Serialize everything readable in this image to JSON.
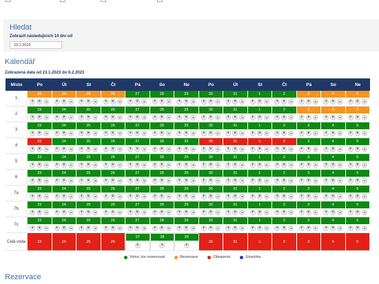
{
  "search": {
    "title": "Hledat",
    "label": "Zobrazit následujících 14 dní od",
    "date_value": "23.1.2023"
  },
  "calendar": {
    "title": "Kalendář",
    "range": "Zobrazená data od 23.1.2023 do 6.2.2023",
    "header_place": "Místo",
    "days": [
      "Po",
      "Út",
      "St",
      "Čt",
      "Pá",
      "So",
      "Ne",
      "Po",
      "Út",
      "St",
      "Čt",
      "Pá",
      "So",
      "Ne"
    ],
    "dates": [
      "23",
      "24",
      "25",
      "26",
      "27",
      "28",
      "29",
      "30",
      "31",
      "1",
      "2",
      "3",
      "4",
      "5"
    ],
    "rows": [
      {
        "place": "1",
        "status": [
          "res",
          "res",
          "res",
          "res",
          "free",
          "free",
          "free",
          "free",
          "free",
          "free",
          "free",
          "res",
          "res",
          "res"
        ]
      },
      {
        "place": "2",
        "status": [
          "free",
          "free",
          "free",
          "free",
          "free",
          "free",
          "free",
          "free",
          "free",
          "free",
          "free",
          "res",
          "res",
          "res"
        ]
      },
      {
        "place": "3",
        "status": [
          "free",
          "free",
          "free",
          "free",
          "free",
          "free",
          "free",
          "free",
          "free",
          "free",
          "free",
          "free",
          "free",
          "free"
        ]
      },
      {
        "place": "4",
        "status": [
          "occ",
          "free",
          "free",
          "free",
          "free",
          "free",
          "free",
          "occ",
          "occ",
          "occ",
          "occ",
          "free",
          "free",
          "free"
        ]
      },
      {
        "place": "5",
        "status": [
          "free",
          "free",
          "free",
          "free",
          "free",
          "free",
          "free",
          "free",
          "free",
          "free",
          "free",
          "free",
          "free",
          "free"
        ]
      },
      {
        "place": "6",
        "status": [
          "free",
          "free",
          "free",
          "free",
          "free",
          "free",
          "free",
          "free",
          "free",
          "free",
          "free",
          "free",
          "free",
          "free"
        ]
      },
      {
        "place": "7a",
        "status": [
          "free",
          "free",
          "free",
          "free",
          "free",
          "free",
          "free",
          "free",
          "free",
          "free",
          "free",
          "free",
          "free",
          "free"
        ]
      },
      {
        "place": "7b",
        "status": [
          "free",
          "free",
          "free",
          "free",
          "free",
          "free",
          "free",
          "free",
          "free",
          "free",
          "free",
          "free",
          "free",
          "free"
        ]
      },
      {
        "place": "7c",
        "status": [
          "free",
          "free",
          "free",
          "free",
          "free",
          "free",
          "free",
          "free",
          "free",
          "free",
          "free",
          "free",
          "free",
          "free"
        ]
      }
    ],
    "whole_row": {
      "place": "Celá voda",
      "status": [
        "occ",
        "occ",
        "occ",
        "occ",
        "free",
        "free",
        "free",
        "occ",
        "occ",
        "occ",
        "occ",
        "occ",
        "occ",
        "occ"
      ]
    },
    "actions": {
      "add": "+",
      "remove": "×",
      "more": "•••"
    },
    "whole_action": "+"
  },
  "legend": [
    {
      "label": "Volno, lze rezervovat",
      "color": "#0c8a11"
    },
    {
      "label": "Rezervace",
      "color": "#f7941d"
    },
    {
      "label": "Obsazeno",
      "color": "#e32117"
    },
    {
      "label": "Uzavírka",
      "color": "#1f3fb5"
    }
  ],
  "reservation": {
    "title": "Rezervace"
  }
}
